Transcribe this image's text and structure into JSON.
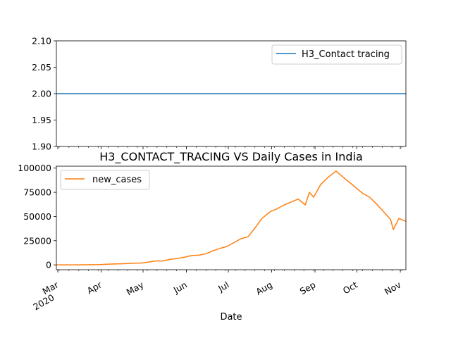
{
  "chart_data": [
    {
      "type": "line",
      "title": "",
      "xlabel": "",
      "ylabel": "",
      "ylim": [
        1.9,
        2.1
      ],
      "y_ticks": [
        "1.90",
        "1.95",
        "2.00",
        "2.05",
        "2.10"
      ],
      "grid": false,
      "legend_position": "top-right",
      "series": [
        {
          "name": "H3_Contact tracing",
          "color": "#1f77b4",
          "points": [
            [
              "2020-02-29",
              2.0
            ],
            [
              "2020-11-05",
              2.0
            ]
          ]
        }
      ]
    },
    {
      "type": "line",
      "title": "H3_CONTACT_TRACING VS Daily Cases in India",
      "xlabel": "Date",
      "ylabel": "",
      "ylim": [
        -5000,
        102000
      ],
      "y_ticks": [
        "0",
        "25000",
        "50000",
        "75000",
        "100000"
      ],
      "x_ticks": [
        "Mar\n2020",
        "Apr",
        "May",
        "Jun",
        "Jul",
        "Aug",
        "Sep",
        "Oct",
        "Nov"
      ],
      "grid": false,
      "legend_position": "top-left",
      "series": [
        {
          "name": "new_cases",
          "color": "#ff7f0e",
          "points": [
            [
              "2020-02-29",
              0
            ],
            [
              "2020-03-10",
              10
            ],
            [
              "2020-03-20",
              80
            ],
            [
              "2020-03-31",
              300
            ],
            [
              "2020-04-05",
              600
            ],
            [
              "2020-04-10",
              900
            ],
            [
              "2020-04-15",
              1100
            ],
            [
              "2020-04-20",
              1400
            ],
            [
              "2020-04-25",
              1700
            ],
            [
              "2020-04-30",
              1900
            ],
            [
              "2020-05-05",
              2900
            ],
            [
              "2020-05-10",
              4000
            ],
            [
              "2020-05-15",
              4000
            ],
            [
              "2020-05-20",
              5600
            ],
            [
              "2020-05-25",
              6500
            ],
            [
              "2020-05-31",
              8000
            ],
            [
              "2020-06-05",
              9800
            ],
            [
              "2020-06-10",
              10000
            ],
            [
              "2020-06-15",
              11500
            ],
            [
              "2020-06-20",
              14500
            ],
            [
              "2020-06-25",
              17000
            ],
            [
              "2020-06-30",
              19000
            ],
            [
              "2020-07-05",
              23000
            ],
            [
              "2020-07-10",
              27000
            ],
            [
              "2020-07-15",
              29000
            ],
            [
              "2020-07-20",
              38000
            ],
            [
              "2020-07-25",
              48000
            ],
            [
              "2020-07-31",
              55000
            ],
            [
              "2020-08-05",
              58000
            ],
            [
              "2020-08-10",
              62000
            ],
            [
              "2020-08-15",
              65000
            ],
            [
              "2020-08-20",
              68000
            ],
            [
              "2020-08-25",
              62000
            ],
            [
              "2020-08-28",
              75000
            ],
            [
              "2020-08-31",
              70000
            ],
            [
              "2020-09-05",
              83000
            ],
            [
              "2020-09-10",
              90000
            ],
            [
              "2020-09-16",
              97000
            ],
            [
              "2020-09-20",
              92000
            ],
            [
              "2020-09-25",
              86000
            ],
            [
              "2020-09-30",
              80000
            ],
            [
              "2020-10-05",
              74000
            ],
            [
              "2020-10-10",
              70000
            ],
            [
              "2020-10-15",
              63000
            ],
            [
              "2020-10-20",
              55000
            ],
            [
              "2020-10-25",
              47000
            ],
            [
              "2020-10-27",
              36500
            ],
            [
              "2020-10-31",
              48000
            ],
            [
              "2020-11-05",
              45000
            ]
          ]
        }
      ]
    }
  ]
}
